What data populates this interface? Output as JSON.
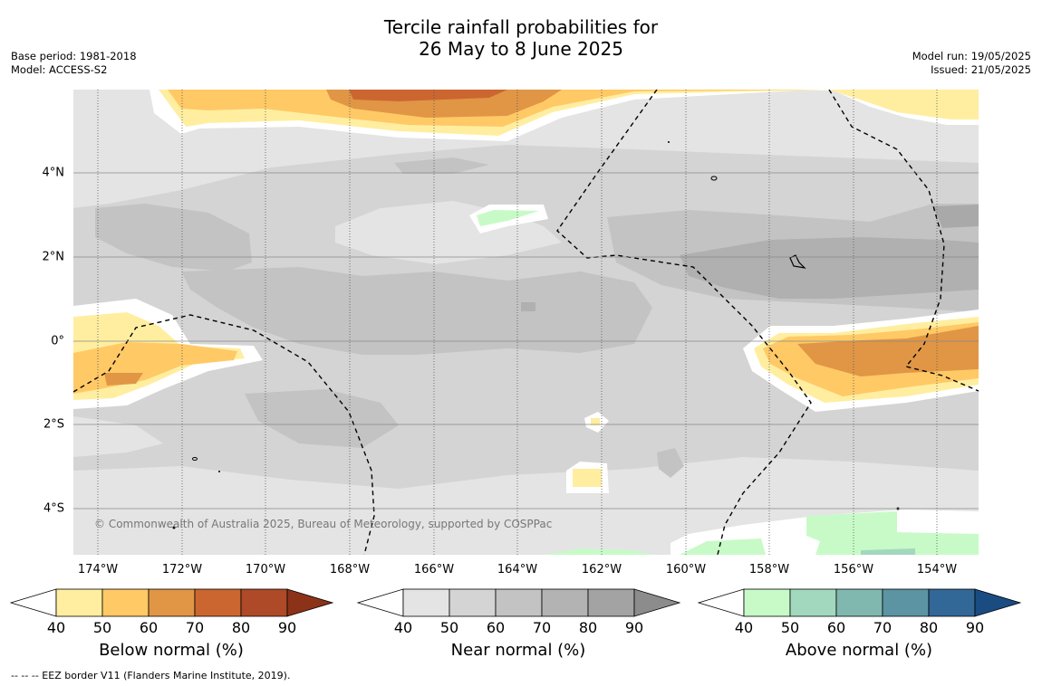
{
  "title_line1": "Tercile rainfall probabilities for",
  "title_line2": "26 May to 8 June 2025",
  "meta_left": {
    "base_period": "Base period: 1981-2018",
    "model": "Model: ACCESS-S2"
  },
  "meta_right": {
    "model_run": "Model run: 19/05/2025",
    "issued": "Issued: 21/05/2025"
  },
  "x_ticks": [
    "174°W",
    "172°W",
    "170°W",
    "168°W",
    "166°W",
    "164°W",
    "162°W",
    "160°W",
    "158°W",
    "156°W",
    "154°W"
  ],
  "y_ticks": [
    "4°N",
    "2°N",
    "0°",
    "2°S",
    "4°S"
  ],
  "copyright": "© Commonwealth of Australia 2025, Bureau of Meteorology, supported by COSPPac",
  "colorbars": [
    {
      "label": "Below normal (%)",
      "ticks": [
        "40",
        "50",
        "60",
        "70",
        "80",
        "90"
      ],
      "colors": [
        "#ffeea0",
        "#ffc966",
        "#e09645",
        "#cc6630",
        "#ae4a28",
        "#8c3218"
      ]
    },
    {
      "label": "Near normal (%)",
      "ticks": [
        "40",
        "50",
        "60",
        "70",
        "80",
        "90"
      ],
      "colors": [
        "#e4e4e4",
        "#d4d4d4",
        "#c3c3c3",
        "#b3b3b3",
        "#a3a3a3",
        "#8c8c8c"
      ]
    },
    {
      "label": "Above normal (%)",
      "ticks": [
        "40",
        "50",
        "60",
        "70",
        "80",
        "90"
      ],
      "colors": [
        "#c8fac8",
        "#a2d8be",
        "#80b8b0",
        "#5c94a4",
        "#326898",
        "#1a4c82"
      ]
    }
  ],
  "footnote": "--  --  -- EEZ border V11 (Flanders Marine Institute, 2019)."
}
